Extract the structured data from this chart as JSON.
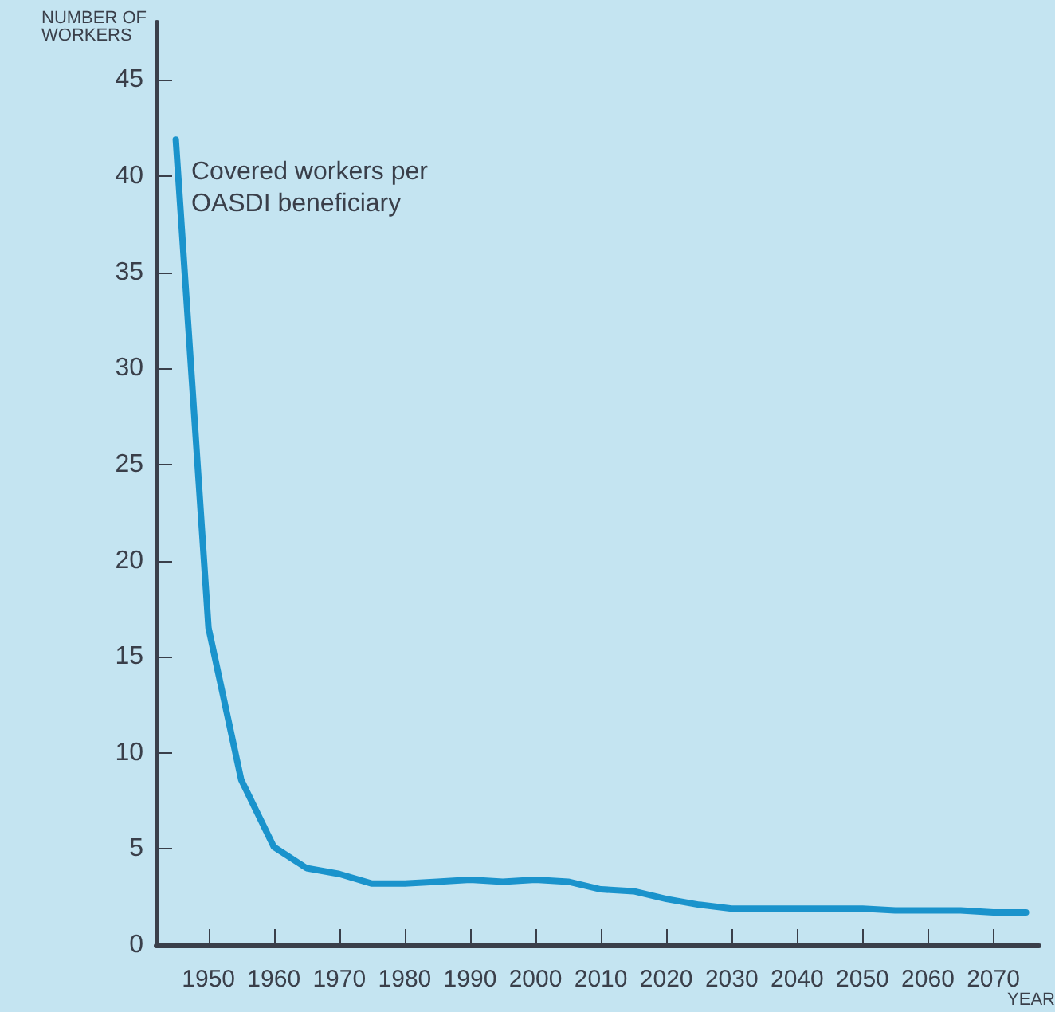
{
  "chart_data": {
    "type": "line",
    "xlabel": "YEAR",
    "ylabel": "NUMBER OF\nWORKERS",
    "x": [
      1945,
      1950,
      1955,
      1960,
      1965,
      1970,
      1975,
      1980,
      1985,
      1990,
      1995,
      2000,
      2005,
      2010,
      2015,
      2020,
      2025,
      2030,
      2035,
      2040,
      2045,
      2050,
      2055,
      2060,
      2065,
      2070,
      2075
    ],
    "series": [
      {
        "name": "Covered workers per\nOASDI beneficiary",
        "color": "#1a93cc",
        "values": [
          41.9,
          16.5,
          8.6,
          5.1,
          4.0,
          3.7,
          3.2,
          3.2,
          3.3,
          3.4,
          3.3,
          3.4,
          3.3,
          2.9,
          2.8,
          2.4,
          2.1,
          1.9,
          1.9,
          1.9,
          1.9,
          1.9,
          1.8,
          1.8,
          1.8,
          1.7,
          1.7
        ]
      }
    ],
    "xlim": [
      1942,
      2077
    ],
    "xticks": [
      1950,
      1960,
      1970,
      1980,
      1990,
      2000,
      2010,
      2020,
      2030,
      2040,
      2050,
      2060,
      2070
    ],
    "ylim": [
      0,
      48
    ],
    "yticks": [
      0,
      5,
      10,
      15,
      20,
      25,
      30,
      35,
      40,
      45
    ],
    "grid": false,
    "legend": false,
    "marker": "none",
    "line_style": "solid"
  }
}
